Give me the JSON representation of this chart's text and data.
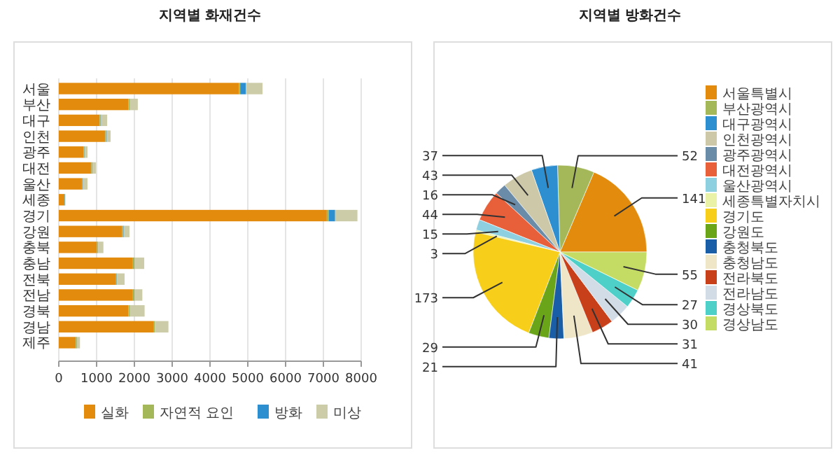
{
  "chart_data": [
    {
      "type": "bar",
      "title": "지역별 화재건수",
      "orientation": "horizontal",
      "stacked": true,
      "categories": [
        "서울",
        "부산",
        "대구",
        "인천",
        "광주",
        "대전",
        "울산",
        "세종",
        "경기",
        "강원",
        "충북",
        "충남",
        "전북",
        "전남",
        "경북",
        "경남",
        "제주"
      ],
      "series": [
        {
          "name": "실화",
          "color": "#e38b0c",
          "values": [
            4770,
            1840,
            1080,
            1230,
            660,
            860,
            610,
            150,
            7090,
            1680,
            1010,
            1960,
            1500,
            1960,
            1840,
            2500,
            450
          ]
        },
        {
          "name": "자연적 요인",
          "color": "#a4b85a",
          "values": [
            30,
            30,
            30,
            30,
            20,
            20,
            20,
            10,
            50,
            30,
            20,
            30,
            30,
            30,
            30,
            40,
            20
          ]
        },
        {
          "name": "방화",
          "color": "#2d8fd0",
          "values": [
            150,
            10,
            10,
            10,
            10,
            10,
            10,
            10,
            170,
            10,
            10,
            10,
            10,
            10,
            10,
            null,
            10
          ]
        },
        {
          "name": "미상",
          "color": "#cccca8",
          "values": [
            440,
            210,
            160,
            100,
            70,
            90,
            120,
            null,
            590,
            150,
            140,
            260,
            200,
            210,
            390,
            360,
            80
          ]
        }
      ],
      "xlim": [
        0,
        8000
      ],
      "xticks": [
        0,
        1000,
        2000,
        3000,
        4000,
        5000,
        6000,
        7000,
        8000
      ],
      "grid": "x",
      "legend": "bottom"
    },
    {
      "type": "pie",
      "title": "지역별 방화건수",
      "categories": [
        "서울특별시",
        "부산광역시",
        "대구광역시",
        "인천광역시",
        "광주광역시",
        "대전광역시",
        "울산광역시",
        "세종특별자치시",
        "경기도",
        "강원도",
        "충청북도",
        "충청남도",
        "전라북도",
        "전라남도",
        "경상북도",
        "경상남도"
      ],
      "values": [
        141,
        52,
        37,
        43,
        16,
        44,
        15,
        3,
        173,
        29,
        21,
        41,
        31,
        30,
        27,
        55
      ],
      "colors": [
        "#e38b0c",
        "#a4b85a",
        "#2d8fd0",
        "#cdc8a8",
        "#6a8ca8",
        "#e8603a",
        "#8ecfe0",
        "#eaf2a8",
        "#f7cf1a",
        "#6aa418",
        "#1a5ea8",
        "#efe6c8",
        "#c8401a",
        "#d2dce6",
        "#4ecfc8",
        "#c4dc64"
      ],
      "data_labels": true,
      "legend": "right"
    }
  ]
}
